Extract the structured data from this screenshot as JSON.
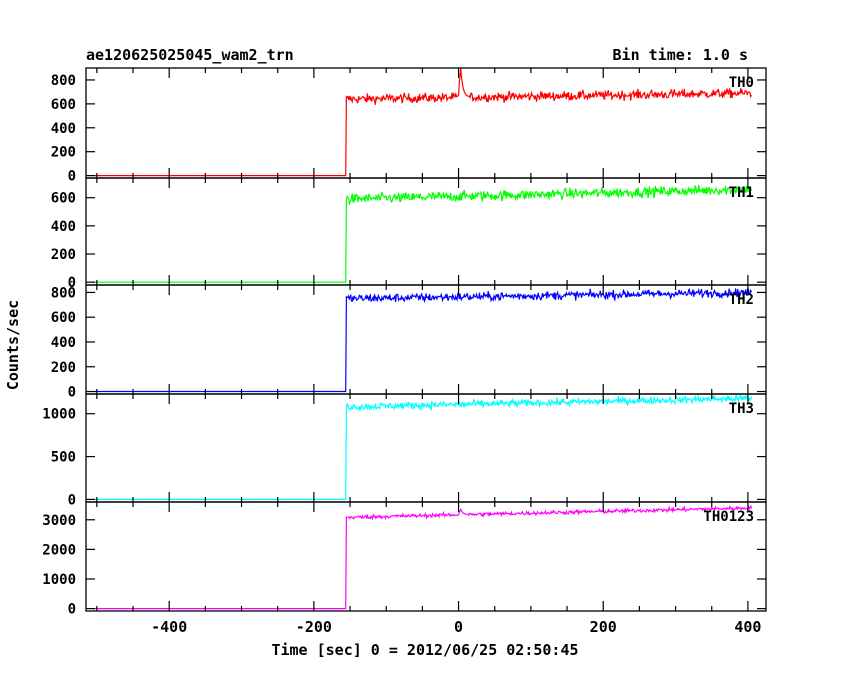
{
  "header": {
    "title": "ae120625025045_wam2_trn",
    "bin_time": "Bin time: 1.0 s"
  },
  "chart_data": {
    "type": "line",
    "xlabel": "Time [sec] 0 = 2012/06/25 02:50:45",
    "ylabel": "Counts/sec",
    "xlim": [
      -515,
      425
    ],
    "x_ticks": [
      -400,
      -200,
      0,
      200,
      400
    ],
    "onset_time": -155,
    "panels": [
      {
        "name": "TH0",
        "color": "#ff0000",
        "ylim": [
          -20,
          900
        ],
        "ticks": [
          0,
          200,
          400,
          600,
          800
        ],
        "pre_level": 0,
        "post_level": 640,
        "end_level": 690,
        "noise": 28,
        "peak": {
          "x": 3,
          "y": 900
        }
      },
      {
        "name": "TH1",
        "color": "#00ff00",
        "ylim": [
          -20,
          740
        ],
        "ticks": [
          0,
          200,
          400,
          600
        ],
        "pre_level": 0,
        "post_level": 590,
        "end_level": 660,
        "noise": 26,
        "peak": null
      },
      {
        "name": "TH2",
        "color": "#0000ff",
        "ylim": [
          -20,
          860
        ],
        "ticks": [
          0,
          200,
          400,
          600,
          800
        ],
        "pre_level": 0,
        "post_level": 750,
        "end_level": 800,
        "noise": 24,
        "peak": null
      },
      {
        "name": "TH3",
        "color": "#00ffff",
        "ylim": [
          -30,
          1230
        ],
        "ticks": [
          0,
          500,
          1000
        ],
        "pre_level": 0,
        "post_level": 1080,
        "end_level": 1180,
        "noise": 30,
        "peak": null
      },
      {
        "name": "TH0123",
        "color": "#ff00ff",
        "ylim": [
          -80,
          3600
        ],
        "ticks": [
          0,
          1000,
          2000,
          3000
        ],
        "pre_level": 0,
        "post_level": 3080,
        "end_level": 3400,
        "noise": 45,
        "peak": {
          "x": 3,
          "y": 3350
        }
      }
    ]
  }
}
